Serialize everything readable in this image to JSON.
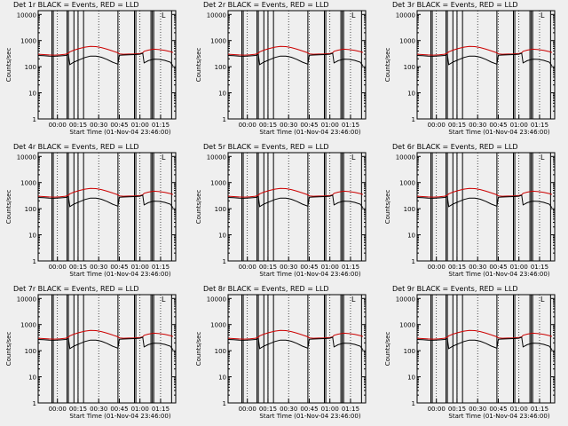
{
  "colors": {
    "background": "#efefef",
    "events": "#000000",
    "lld": "#cc0000",
    "axis": "#000000"
  },
  "shared": {
    "ylabel": "Counts/sec",
    "xlabel": "Start Time (01-Nov-04 23:46:00)",
    "x_ticks": [
      "00:00",
      "00:15",
      "00:30",
      "00:45",
      "01:00",
      "01:15"
    ],
    "x_tick_minutes": [
      14,
      29,
      44,
      59,
      74,
      89
    ],
    "y_ticks": [
      "1",
      "10",
      "100",
      "1000",
      "10000"
    ],
    "y_tick_values": [
      1,
      10,
      100,
      1000,
      10000
    ],
    "xlim": [
      0,
      100
    ],
    "ylim": [
      1,
      14000
    ],
    "yscale": "log",
    "corner_mark": "L"
  },
  "chart_data": [
    {
      "type": "line",
      "title": "Det 1r BLACK = Events, RED = LLD",
      "series": [
        {
          "name": "Events",
          "color": "black"
        },
        {
          "name": "LLD",
          "color": "red"
        }
      ],
      "vlines": [
        10,
        11,
        21,
        22,
        26,
        29,
        33,
        58,
        70,
        71,
        82,
        83,
        84,
        97
      ]
    },
    {
      "type": "line",
      "title": "Det 2r BLACK = Events, RED = LLD",
      "series": [
        {
          "name": "Events",
          "color": "black"
        },
        {
          "name": "LLD",
          "color": "red"
        }
      ],
      "vlines": [
        10,
        11,
        21,
        22,
        26,
        29,
        33,
        58,
        70,
        71,
        82,
        83,
        84,
        97
      ]
    },
    {
      "type": "line",
      "title": "Det 3r BLACK = Events, RED = LLD",
      "series": [
        {
          "name": "Events",
          "color": "black"
        },
        {
          "name": "LLD",
          "color": "red"
        }
      ],
      "vlines": [
        10,
        11,
        21,
        22,
        26,
        29,
        33,
        58,
        70,
        71,
        82,
        83,
        84,
        97
      ]
    },
    {
      "type": "line",
      "title": "Det 4r BLACK = Events, RED = LLD",
      "series": [
        {
          "name": "Events",
          "color": "black"
        },
        {
          "name": "LLD",
          "color": "red"
        }
      ],
      "vlines": [
        10,
        11,
        21,
        22,
        26,
        29,
        33,
        58,
        70,
        71,
        82,
        83,
        84,
        97
      ]
    },
    {
      "type": "line",
      "title": "Det 5r BLACK = Events, RED = LLD",
      "series": [
        {
          "name": "Events",
          "color": "black"
        },
        {
          "name": "LLD",
          "color": "red"
        }
      ],
      "vlines": [
        10,
        11,
        21,
        22,
        26,
        29,
        33,
        58,
        70,
        71,
        82,
        83,
        84,
        97
      ]
    },
    {
      "type": "line",
      "title": "Det 6r BLACK = Events, RED = LLD",
      "series": [
        {
          "name": "Events",
          "color": "black"
        },
        {
          "name": "LLD",
          "color": "red"
        }
      ],
      "vlines": [
        10,
        11,
        21,
        22,
        26,
        29,
        33,
        58,
        70,
        71,
        82,
        83,
        84,
        97
      ]
    },
    {
      "type": "line",
      "title": "Det 7r BLACK = Events, RED = LLD",
      "series": [
        {
          "name": "Events",
          "color": "black"
        },
        {
          "name": "LLD",
          "color": "red"
        }
      ],
      "vlines": [
        10,
        11,
        21,
        22,
        26,
        29,
        33,
        58,
        70,
        71,
        82,
        83,
        84,
        97
      ]
    },
    {
      "type": "line",
      "title": "Det 8r BLACK = Events, RED = LLD",
      "series": [
        {
          "name": "Events",
          "color": "black"
        },
        {
          "name": "LLD",
          "color": "red"
        }
      ],
      "vlines": [
        10,
        11,
        21,
        22,
        26,
        29,
        33,
        58,
        70,
        71,
        82,
        83,
        84,
        97
      ]
    },
    {
      "type": "line",
      "title": "Det 9r BLACK = Events, RED = LLD",
      "series": [
        {
          "name": "Events",
          "color": "black"
        },
        {
          "name": "LLD",
          "color": "red"
        }
      ],
      "vlines": [
        10,
        11,
        21,
        22,
        26,
        29,
        33,
        58,
        70,
        71,
        82,
        83,
        84,
        97
      ]
    }
  ],
  "series_values": {
    "x": [
      0,
      4,
      8,
      12,
      16,
      20,
      22,
      23,
      26,
      30,
      34,
      38,
      42,
      46,
      50,
      54,
      58,
      59,
      62,
      66,
      70,
      74,
      76,
      77,
      80,
      84,
      88,
      92,
      96,
      98
    ],
    "events": [
      270,
      262,
      255,
      250,
      258,
      270,
      290,
      120,
      150,
      185,
      225,
      255,
      255,
      230,
      190,
      150,
      125,
      275,
      280,
      285,
      290,
      300,
      330,
      140,
      170,
      195,
      190,
      175,
      150,
      110
    ],
    "lld": [
      300,
      290,
      282,
      278,
      285,
      300,
      330,
      370,
      430,
      500,
      560,
      600,
      590,
      540,
      470,
      400,
      340,
      310,
      300,
      305,
      310,
      320,
      340,
      390,
      430,
      470,
      450,
      420,
      380,
      350
    ]
  }
}
